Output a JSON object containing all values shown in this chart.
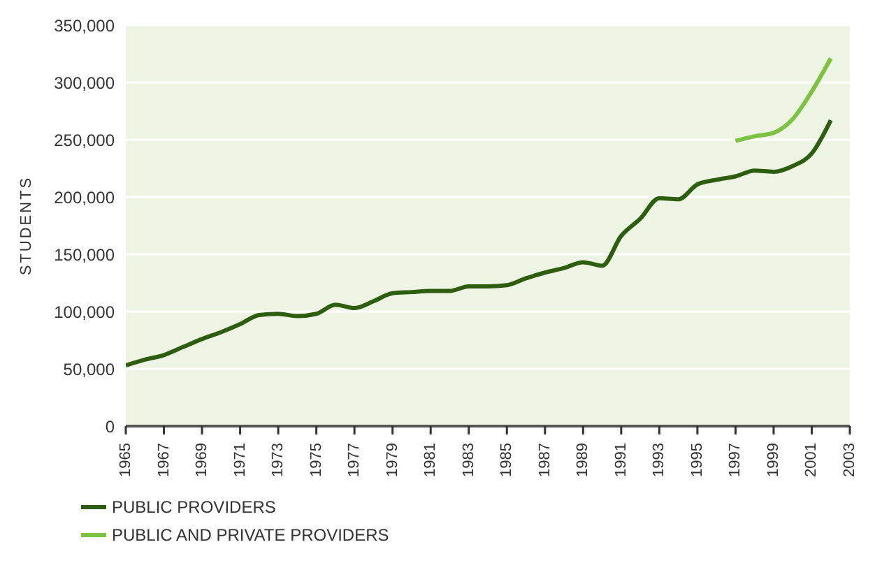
{
  "chart_data": {
    "type": "line",
    "ylabel": "STUDENTS",
    "x": [
      1965,
      1966,
      1967,
      1968,
      1969,
      1970,
      1971,
      1972,
      1973,
      1974,
      1975,
      1976,
      1977,
      1978,
      1979,
      1980,
      1981,
      1982,
      1983,
      1984,
      1985,
      1986,
      1987,
      1988,
      1989,
      1990,
      1991,
      1992,
      1993,
      1994,
      1995,
      1996,
      1997,
      1998,
      1999,
      2000,
      2001,
      2002
    ],
    "series": [
      {
        "name": "PUBLIC PROVIDERS",
        "color": "#2d5e0f",
        "values": [
          53000,
          58000,
          62000,
          69000,
          76000,
          82000,
          89000,
          97000,
          98000,
          96000,
          98000,
          106000,
          103000,
          109000,
          116000,
          117000,
          118000,
          118000,
          122000,
          122000,
          123000,
          129000,
          134000,
          138000,
          143000,
          140000,
          166000,
          181000,
          199000,
          198000,
          211000,
          215000,
          218000,
          223000,
          222000,
          227000,
          238000,
          267000
        ]
      },
      {
        "name": "PUBLIC AND PRIVATE PROVIDERS",
        "color": "#7cc243",
        "values": [
          null,
          null,
          null,
          null,
          null,
          null,
          null,
          null,
          null,
          null,
          null,
          null,
          null,
          null,
          null,
          null,
          null,
          null,
          null,
          null,
          null,
          null,
          null,
          null,
          null,
          null,
          null,
          null,
          null,
          null,
          null,
          null,
          249000,
          253000,
          256000,
          268000,
          292000,
          321000
        ]
      }
    ],
    "xlim": [
      1965,
      2003
    ],
    "xticks": [
      1965,
      1967,
      1969,
      1971,
      1973,
      1975,
      1977,
      1979,
      1981,
      1983,
      1985,
      1987,
      1989,
      1991,
      1993,
      1995,
      1997,
      1999,
      2001,
      2003
    ],
    "ylim": [
      0,
      350000
    ],
    "yticks": [
      0,
      {
        "value": 50000,
        "label": "50,000"
      },
      {
        "value": 100000,
        "label": "100,000"
      },
      {
        "value": 150000,
        "label": "150,000"
      },
      {
        "value": 200000,
        "label": "200,000"
      },
      {
        "value": 250000,
        "label": "250,000"
      },
      {
        "value": 300000,
        "label": "300,000"
      },
      {
        "value": 350000,
        "label": "350,000"
      }
    ],
    "grid": "y",
    "legend": "bottom left",
    "marker": "none",
    "line_style": "solid"
  }
}
